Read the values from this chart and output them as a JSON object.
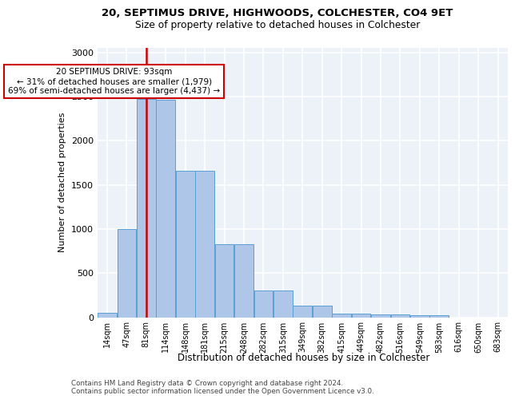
{
  "title1": "20, SEPTIMUS DRIVE, HIGHWOODS, COLCHESTER, CO4 9ET",
  "title2": "Size of property relative to detached houses in Colchester",
  "xlabel": "Distribution of detached houses by size in Colchester",
  "ylabel": "Number of detached properties",
  "bar_labels": [
    "14sqm",
    "47sqm",
    "81sqm",
    "114sqm",
    "148sqm",
    "181sqm",
    "215sqm",
    "248sqm",
    "282sqm",
    "315sqm",
    "349sqm",
    "382sqm",
    "415sqm",
    "449sqm",
    "482sqm",
    "516sqm",
    "549sqm",
    "583sqm",
    "616sqm",
    "650sqm",
    "683sqm"
  ],
  "bar_heights": [
    50,
    1000,
    2470,
    2460,
    1655,
    1655,
    830,
    830,
    300,
    300,
    130,
    130,
    45,
    45,
    35,
    35,
    20,
    20,
    0,
    0,
    0
  ],
  "bar_color": "#aec6e8",
  "bar_edge_color": "#5a9fd4",
  "vline_x_index": 2,
  "vline_color": "#cc0000",
  "annotation_text": "20 SEPTIMUS DRIVE: 93sqm\n← 31% of detached houses are smaller (1,979)\n69% of semi-detached houses are larger (4,437) →",
  "ylim_max": 3050,
  "yticks": [
    0,
    500,
    1000,
    1500,
    2000,
    2500,
    3000
  ],
  "footer_text": "Contains HM Land Registry data © Crown copyright and database right 2024.\nContains public sector information licensed under the Open Government Licence v3.0.",
  "grid_color": "#ffffff",
  "bg_color": "#edf2f9"
}
